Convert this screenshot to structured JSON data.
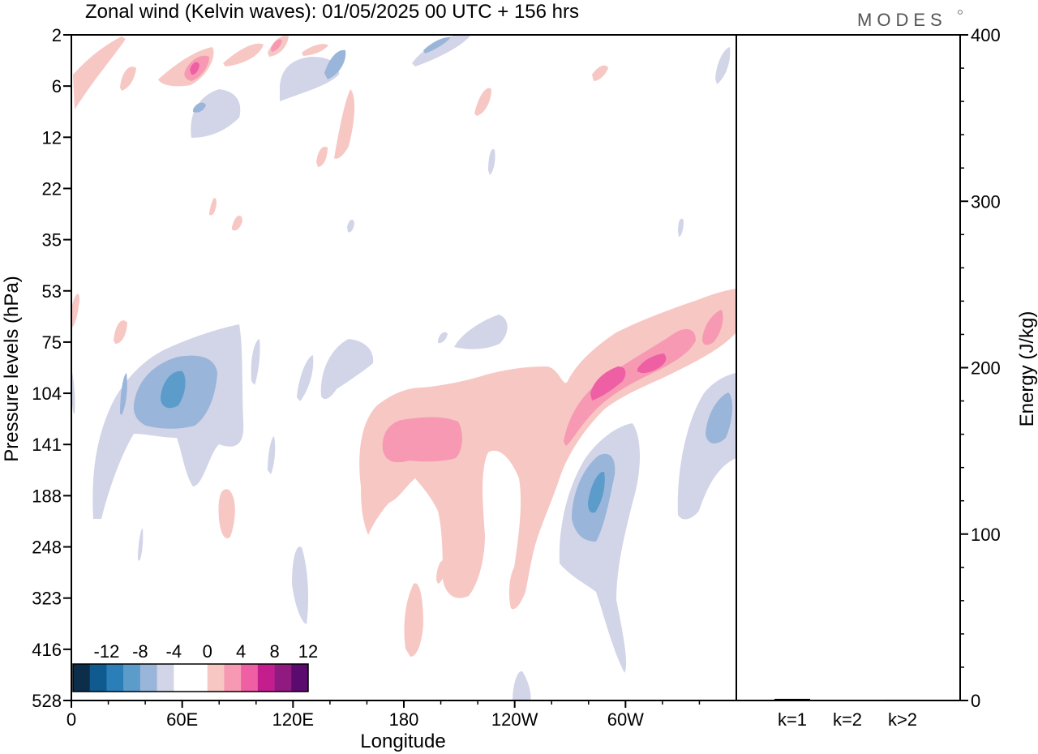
{
  "brand": {
    "logo_text": "MODES"
  },
  "chart_data": [
    {
      "type": "heatmap",
      "title": "Zonal wind (Kelvin waves):  01/05/2025  00 UTC  + 156 hrs",
      "xlabel": "Longitude",
      "ylabel": "Pressure levels (hPa)",
      "x_ticks": [
        {
          "lon": 0,
          "label": "0"
        },
        {
          "lon": 60,
          "label": "60E"
        },
        {
          "lon": 120,
          "label": "120E"
        },
        {
          "lon": 180,
          "label": "180"
        },
        {
          "lon": 240,
          "label": "120W"
        },
        {
          "lon": 300,
          "label": "60W"
        }
      ],
      "xlim": [
        0,
        360
      ],
      "y_levels": [
        "2",
        "6",
        "12",
        "22",
        "35",
        "53",
        "75",
        "104",
        "141",
        "188",
        "248",
        "323",
        "416",
        "528"
      ],
      "y_scale": "log-pressure (inverted)",
      "colorbar": {
        "labels": [
          "-12",
          "-8",
          "-4",
          "0",
          "4",
          "8",
          "12"
        ],
        "placement": "bottom-left",
        "colors": [
          "#0d2e4a",
          "#0f5b8f",
          "#2b7fb8",
          "#5c9ccb",
          "#99b5d9",
          "#d2d4e8",
          "#ffffff",
          "#ffffff",
          "#f7c7c4",
          "#f799b2",
          "#ee5fa4",
          "#c41e8e",
          "#901a80",
          "#5b0a6e"
        ]
      },
      "features": [
        {
          "sign": "negative",
          "level": -8,
          "lon_center": 50,
          "p_center": 104
        },
        {
          "sign": "negative",
          "level": -8,
          "lon_center": 285,
          "p_center": 175
        },
        {
          "sign": "negative",
          "level": -6,
          "lon_center": 350,
          "p_center": 125
        },
        {
          "sign": "positive",
          "level": 8,
          "lon_center": 195,
          "p_center": 135
        },
        {
          "sign": "positive",
          "level": 10,
          "lon_center": 290,
          "p_center": 100
        },
        {
          "sign": "positive",
          "level": 12,
          "lon_center": 65,
          "p_center": 5
        }
      ]
    },
    {
      "type": "bar",
      "categories": [
        "k=1",
        "k=2",
        "k>2"
      ],
      "values": [
        1.0,
        0.3,
        0.5
      ],
      "ylabel": "Energy (J/kg)",
      "ylim": [
        0,
        400
      ],
      "y_ticks": [
        "0",
        "100",
        "200",
        "300",
        "400"
      ]
    }
  ]
}
